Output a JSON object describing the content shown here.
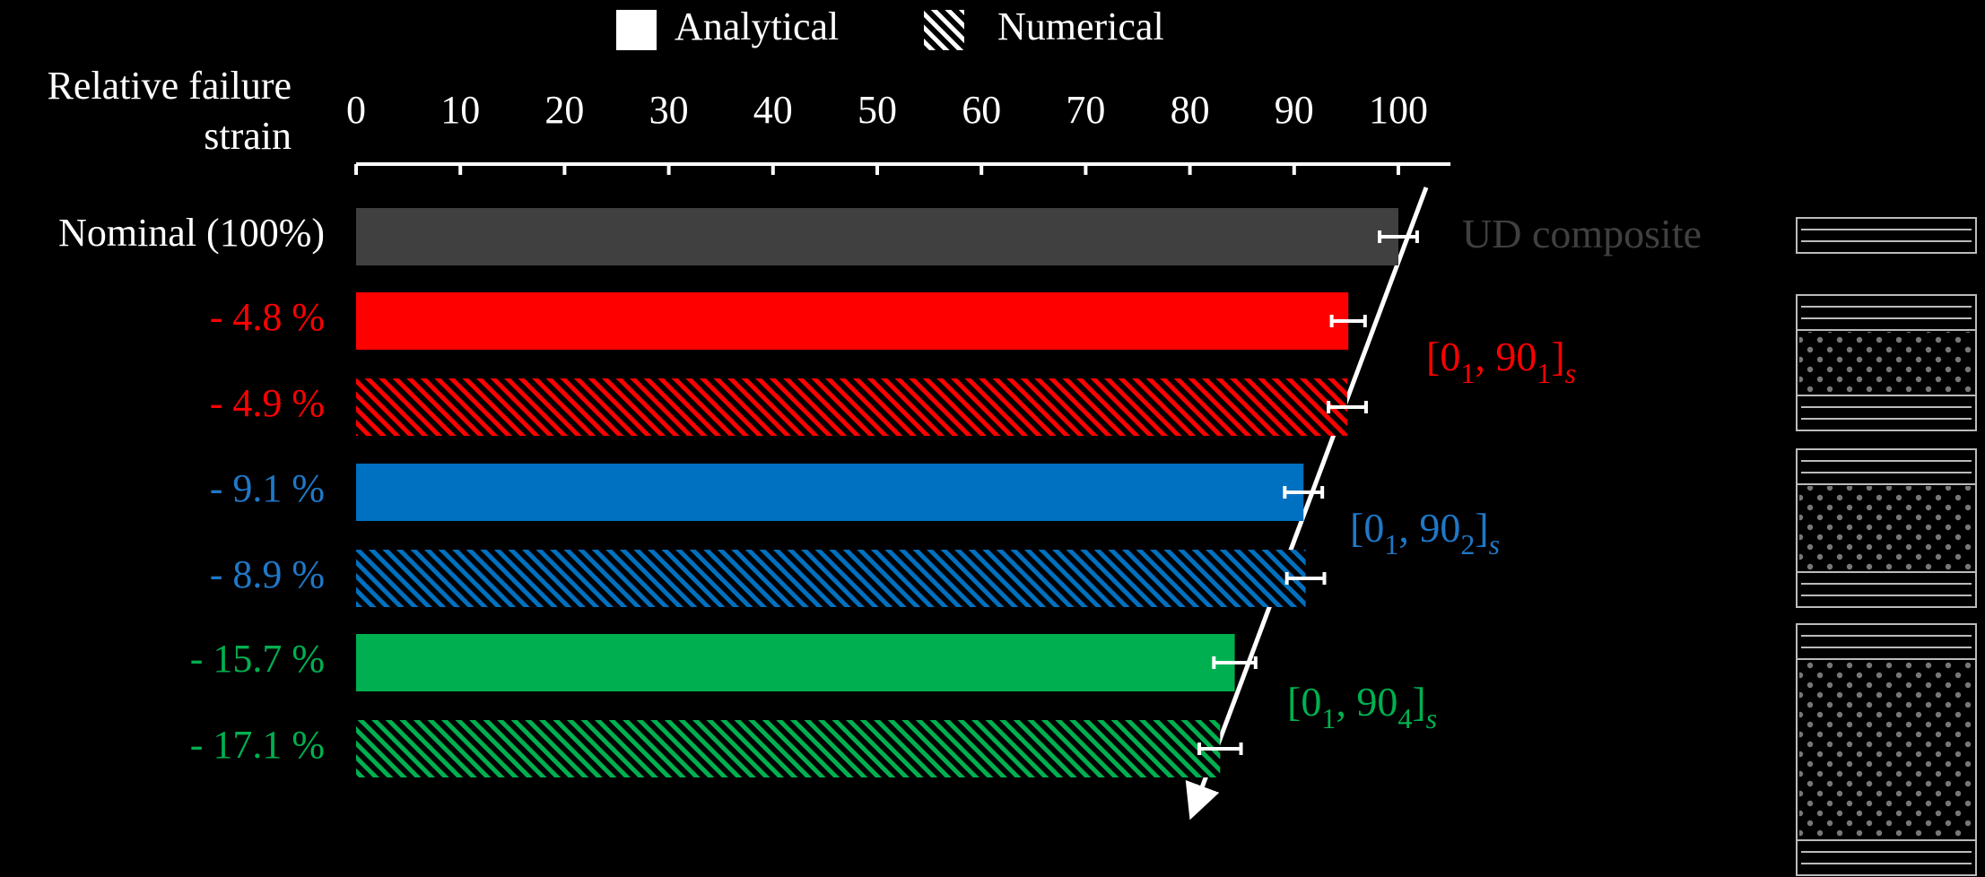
{
  "chart_data": {
    "type": "barh",
    "x_label_lines": [
      "Relative failure",
      "strain"
    ],
    "categories": [
      "Nominal (100%)",
      "- 4.8 %",
      "- 4.9 %",
      "- 9.1 %",
      "- 8.9 %",
      "- 15.7 %",
      "- 17.1 %"
    ],
    "label_colors": [
      "#ffffff",
      "#ff0000",
      "#ff0000",
      "#1f78c8",
      "#1f78c8",
      "#00b050",
      "#00b050"
    ],
    "bar_colors": [
      "#404040",
      "#ff0000",
      "#ff0000",
      "#0070c0",
      "#0070c0",
      "#00b050",
      "#00b050"
    ],
    "series": [
      {
        "name": "Analytical",
        "color": "#ffffff",
        "hatched": false,
        "values": [
          100,
          95.2,
          null,
          90.9,
          null,
          84.3,
          null
        ],
        "errors": [
          1.8,
          1.6,
          null,
          1.8,
          null,
          2,
          null
        ]
      },
      {
        "name": "Numerical",
        "color": "#ffffff",
        "hatched": true,
        "values": [
          null,
          null,
          95.1,
          null,
          91.1,
          null,
          82.9
        ],
        "errors": [
          null,
          null,
          1.8,
          null,
          1.8,
          null,
          2
        ]
      }
    ],
    "xlim": [
      0,
      105
    ],
    "xticks": [
      0,
      10,
      20,
      30,
      40,
      50,
      60,
      70,
      80,
      90,
      100
    ],
    "annotations": [
      {
        "parts": [
          "UD composite"
        ],
        "color": "#404040"
      },
      {
        "parts": [
          "[0",
          "1",
          ", 90",
          "1",
          "]",
          "s"
        ],
        "color": "#ff0000"
      },
      {
        "parts": [
          "[0",
          "1",
          ", 90",
          "2",
          "]",
          "s"
        ],
        "color": "#1f78c8"
      },
      {
        "parts": [
          "[0",
          "1",
          ", 90",
          "4",
          "]",
          "s"
        ],
        "color": "#00b050"
      }
    ]
  }
}
